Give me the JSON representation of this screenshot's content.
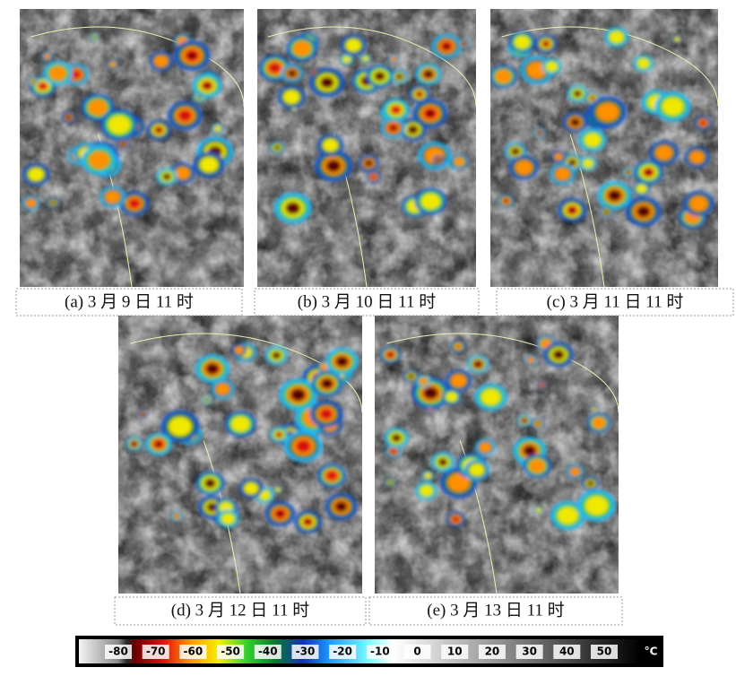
{
  "panels": [
    {
      "caption": "(a) 3 月 9 日 11 时"
    },
    {
      "caption": "(b)  3 月 10 日 11 时"
    },
    {
      "caption": "(c)  3 月 11 日  11 时"
    },
    {
      "caption": "(d) 3 月 12 日 11 时"
    },
    {
      "caption": "(e)  3 月 13 日  11 时"
    }
  ],
  "colorbar": {
    "ticks": [
      -80,
      -70,
      -60,
      -50,
      -40,
      -30,
      -20,
      -10,
      0,
      10,
      20,
      30,
      40,
      50
    ],
    "unit": "°C"
  }
}
